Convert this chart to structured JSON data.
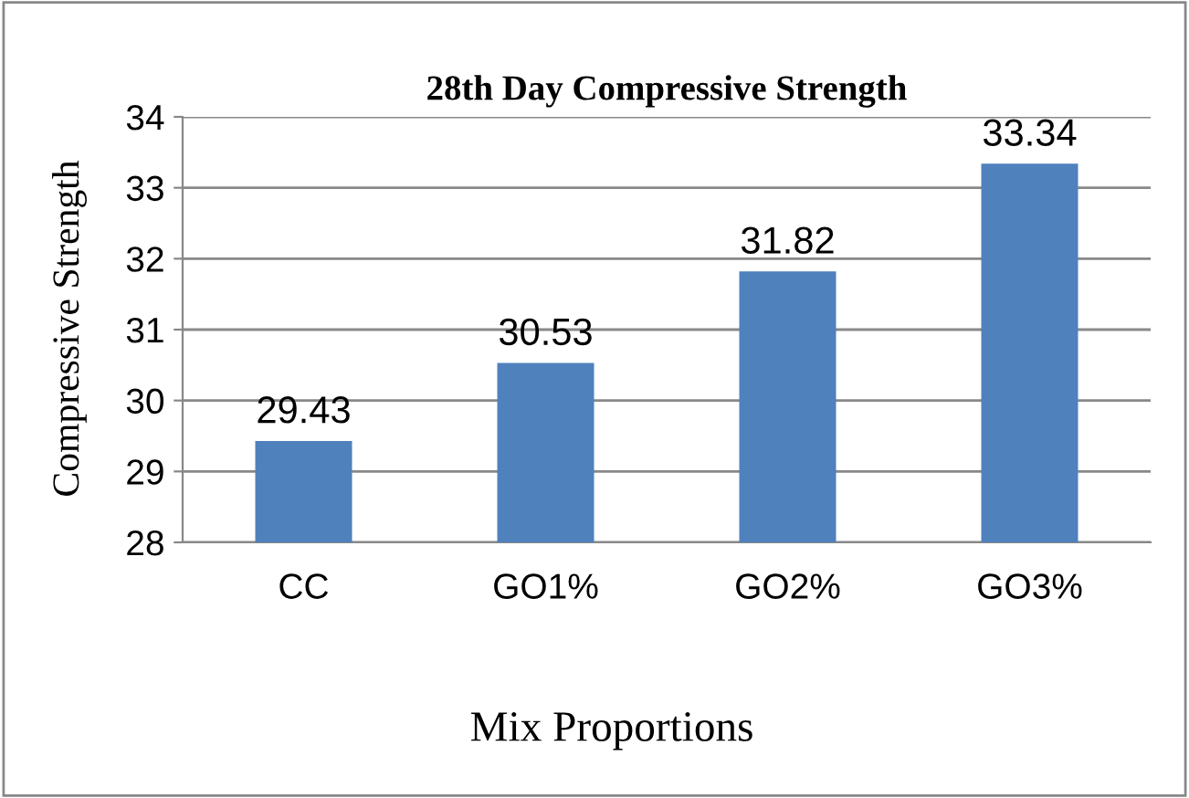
{
  "chart_data": {
    "type": "bar",
    "title": "28th Day Compressive Strength",
    "xlabel": "Mix Proportions",
    "ylabel": "Compressive Strength",
    "categories": [
      "CC",
      "GO1%",
      "GO2%",
      "GO3%"
    ],
    "values": [
      29.43,
      30.53,
      31.82,
      33.34
    ],
    "color": "#4f81bd",
    "ylim": [
      28,
      34
    ],
    "yticks": [
      28,
      29,
      30,
      31,
      32,
      33,
      34
    ],
    "grid": "y",
    "data_labels": true
  }
}
